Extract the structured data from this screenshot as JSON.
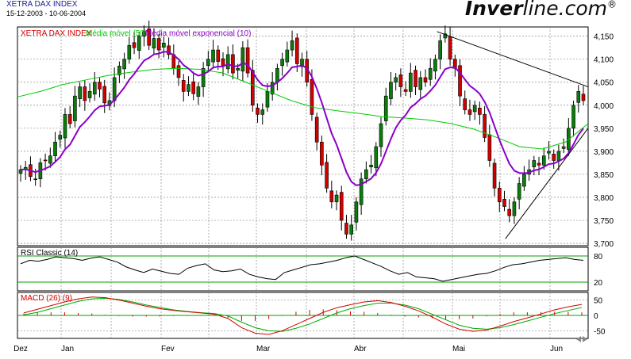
{
  "header": {
    "title": "XETRA DAX INDEX",
    "date_range": "15-12-2003 - 10-06-2004",
    "logo_bold": "Inver",
    "logo_light": "line.com",
    "logo_reg": "®"
  },
  "colors": {
    "price_label": "#d40000",
    "ma50": "#00cc00",
    "ema10": "#8a00c8",
    "up_candle": "#0b7d0b",
    "down_candle": "#d40000",
    "grid": "#8c8c8c",
    "rsi_line": "#000000",
    "macd_line": "#d40000",
    "signal_line": "#00aa00",
    "histogram": "#d40000",
    "reference_lines": "#00a000"
  },
  "chart_data": [
    {
      "panel": "price",
      "type": "candlestick",
      "legend": [
        "XETRA DAX INDEX",
        "Média móvel (50)",
        "Média móvel exponencial (10)"
      ],
      "x_labels": [
        "Dez",
        "Jan",
        "Fev",
        "Mar",
        "Abr",
        "Mai",
        "Jun"
      ],
      "y_ticks": [
        3700,
        3750,
        3800,
        3850,
        3900,
        3950,
        4000,
        4050,
        4100,
        4150
      ],
      "y_tick_labels": [
        "3,700",
        "3,750",
        "3,800",
        "3,850",
        "3,900",
        "3,950",
        "4,000",
        "4,050",
        "4,100",
        "4,150"
      ],
      "ylim": [
        3695,
        4170
      ],
      "grid": true,
      "close_path": [
        3860,
        3865,
        3845,
        3840,
        3875,
        3880,
        3890,
        3920,
        3935,
        3980,
        3960,
        4020,
        4040,
        4010,
        4030,
        4050,
        4035,
        4005,
        4010,
        4060,
        4085,
        4100,
        4130,
        4125,
        4150,
        4160,
        4130,
        4145,
        4120,
        4135,
        4110,
        4080,
        4060,
        4030,
        4045,
        4025,
        4040,
        4080,
        4100,
        4120,
        4095,
        4085,
        4110,
        4070,
        4080,
        4125,
        4070,
        4000,
        3980,
        3990,
        4030,
        4050,
        4080,
        4100,
        4120,
        4140,
        4090,
        4100,
        4050,
        3980,
        3920,
        3870,
        3820,
        3790,
        3805,
        3750,
        3720,
        3740,
        3790,
        3840,
        3860,
        3870,
        3910,
        3960,
        4020,
        4050,
        4060,
        4040,
        4030,
        4070,
        4040,
        4060,
        4050,
        4080,
        4100,
        4140,
        4155,
        4100,
        4080,
        4020,
        3990,
        3980,
        4000,
        3980,
        3930,
        3880,
        3820,
        3790,
        3780,
        3760,
        3790,
        3830,
        3850,
        3860,
        3880,
        3870,
        3890,
        3900,
        3880,
        3900,
        3910,
        3950,
        4000,
        4030,
        4010
      ],
      "ma50_path": [
        [
          0,
          4018
        ],
        [
          0.04,
          4030
        ],
        [
          0.08,
          4045
        ],
        [
          0.12,
          4055
        ],
        [
          0.16,
          4065
        ],
        [
          0.2,
          4072
        ],
        [
          0.24,
          4078
        ],
        [
          0.28,
          4080
        ],
        [
          0.32,
          4078
        ],
        [
          0.36,
          4070
        ],
        [
          0.4,
          4050
        ],
        [
          0.44,
          4030
        ],
        [
          0.48,
          4010
        ],
        [
          0.52,
          3995
        ],
        [
          0.56,
          3988
        ],
        [
          0.6,
          3982
        ],
        [
          0.64,
          3975
        ],
        [
          0.68,
          3972
        ],
        [
          0.72,
          3968
        ],
        [
          0.76,
          3960
        ],
        [
          0.8,
          3948
        ],
        [
          0.84,
          3930
        ],
        [
          0.88,
          3910
        ],
        [
          0.92,
          3905
        ],
        [
          0.96,
          3920
        ],
        [
          1,
          3960
        ]
      ],
      "trendlines": [
        {
          "from": [
            0.735,
            4160
          ],
          "to": [
            1,
            4040
          ]
        },
        {
          "from": [
            0.855,
            3710
          ],
          "to": [
            1,
            3950
          ]
        }
      ]
    },
    {
      "panel": "rsi",
      "type": "line",
      "title": "RSI Classic (14)",
      "y_ticks": [
        20,
        80
      ],
      "ylim": [
        0,
        100
      ],
      "reference_lines": [
        20,
        80
      ],
      "values": [
        62,
        70,
        68,
        72,
        78,
        76,
        74,
        70,
        75,
        78,
        72,
        66,
        55,
        48,
        42,
        50,
        45,
        40,
        38,
        52,
        58,
        62,
        48,
        44,
        46,
        50,
        38,
        32,
        28,
        26,
        42,
        48,
        54,
        60,
        62,
        66,
        70,
        76,
        80,
        72,
        64,
        56,
        46,
        38,
        42,
        32,
        30,
        28,
        22,
        26,
        30,
        34,
        38,
        40,
        46,
        54,
        60,
        62,
        66,
        70,
        72,
        74,
        76,
        72,
        70
      ]
    },
    {
      "panel": "macd",
      "type": "line",
      "title": "MACD (26)",
      "title_suffix": "(9)",
      "y_ticks": [
        -50,
        0,
        50
      ],
      "y_tick_labels": [
        "-50",
        "0",
        "50"
      ],
      "ylim": [
        -75,
        75
      ],
      "macd_values": [
        8,
        20,
        32,
        44,
        54,
        60,
        58,
        50,
        40,
        30,
        22,
        16,
        12,
        8,
        4,
        -10,
        -40,
        -58,
        -62,
        -50,
        -30,
        -10,
        10,
        25,
        35,
        44,
        48,
        42,
        30,
        15,
        -5,
        -28,
        -45,
        -52,
        -48,
        -35,
        -20,
        -8,
        5,
        18,
        28,
        36
      ],
      "signal_values": [
        2,
        10,
        22,
        34,
        46,
        54,
        56,
        52,
        44,
        34,
        26,
        18,
        13,
        9,
        6,
        -2,
        -22,
        -40,
        -50,
        -52,
        -42,
        -28,
        -10,
        8,
        22,
        32,
        40,
        40,
        34,
        22,
        4,
        -14,
        -32,
        -42,
        -45,
        -40,
        -30,
        -18,
        -6,
        6,
        16,
        26
      ],
      "histogram_values": [
        6,
        10,
        10,
        10,
        8,
        6,
        2,
        -2,
        -4,
        -4,
        -4,
        -2,
        -1,
        -1,
        -2,
        -8,
        -18,
        -18,
        -12,
        2,
        12,
        18,
        20,
        17,
        13,
        12,
        8,
        2,
        -4,
        -7,
        -9,
        -14,
        -13,
        -10,
        -3,
        5,
        10,
        10,
        11,
        12,
        12,
        10
      ]
    }
  ]
}
